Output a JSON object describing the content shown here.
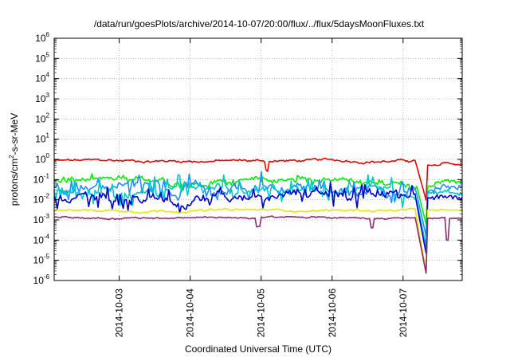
{
  "chart_data": {
    "type": "line",
    "title": "/data/run/goesPlots/archive/2014-10-07/20:00/flux/../flux/5daysMoonFluxes.txt",
    "xlabel": "Coordinated Universal Time (UTC)",
    "ylabel": "protons/cm2-s-sr-MeV",
    "ylabel_parts": {
      "pre": "protons/cm",
      "sup": "2",
      "post": "-s-sr-MeV"
    },
    "yscale": "log",
    "ylim": [
      1e-06,
      1000000.0
    ],
    "ytick_base": "10",
    "ytick_exponents": [
      "-6",
      "-5",
      "-4",
      "-3",
      "-2",
      "-1",
      "0",
      "1",
      "2",
      "3",
      "4",
      "5",
      "6"
    ],
    "xlim": [
      "2014-10-02T02:00",
      "2014-10-07T20:00"
    ],
    "xticks": [
      "2014-10-03",
      "2014-10-04",
      "2014-10-05",
      "2014-10-06",
      "2014-10-07"
    ],
    "grid": true,
    "legend": "none",
    "series": [
      {
        "color": "#ee0000",
        "level": 0.85,
        "noise": 0.06,
        "spike": 0.0,
        "dip_at": [
          0.52
        ],
        "tail": [
          0.5,
          0.5,
          0.7,
          0.6,
          0.55
        ]
      },
      {
        "color": "#00ee00",
        "level": 0.09,
        "noise": 0.12,
        "spike": 0.06,
        "dip_at": [],
        "tail": [
          0.05,
          0.07,
          0.09,
          0.08,
          0.07
        ]
      },
      {
        "color": "#1e90ff",
        "level": 0.04,
        "noise": 0.22,
        "spike": 0.18,
        "dip_at": [],
        "tail": [
          0.03,
          0.04,
          0.05,
          0.04,
          0.04
        ]
      },
      {
        "color": "#00c8c8",
        "level": 0.02,
        "noise": 0.22,
        "spike": 0.22,
        "dip_at": [],
        "tail": [
          0.02,
          0.02,
          0.025,
          0.02,
          0.02
        ]
      },
      {
        "color": "#0000cc",
        "level": 0.015,
        "noise": 0.22,
        "spike": 0.2,
        "dip_at": [],
        "tail": [
          0.012,
          0.014,
          0.016,
          0.013,
          0.012
        ]
      },
      {
        "color": "#e6e600",
        "level": 0.003,
        "noise": 0.05,
        "spike": 0.0,
        "dip_at": [],
        "tail": [
          0.003,
          0.003,
          0.0032,
          0.003,
          0.003
        ]
      },
      {
        "color": "#8b2b70",
        "level": 0.0013,
        "noise": 0.04,
        "spike": 0.0,
        "dip_at": [
          0.5,
          0.78
        ],
        "tail": [
          0.0012,
          0.0012,
          0.0013,
          0.0012,
          0.0012
        ]
      }
    ]
  }
}
